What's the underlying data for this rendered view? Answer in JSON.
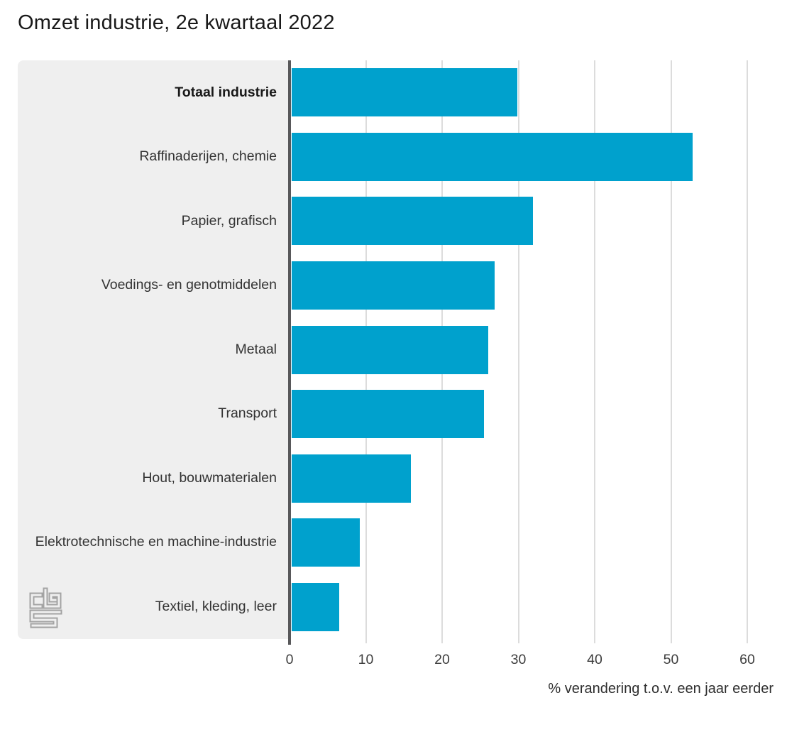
{
  "title": "Omzet industrie, 2e kwartaal 2022",
  "chart_data": {
    "type": "bar",
    "orientation": "horizontal",
    "title": "Omzet industrie, 2e kwartaal 2022",
    "categories": [
      "Totaal industrie",
      "Raffinaderijen, chemie",
      "Papier, grafisch",
      "Voedings- en genotmiddelen",
      "Metaal",
      "Transport",
      "Hout, bouwmaterialen",
      "Elektrotechnische en machine-industrie",
      "Textiel, kleding, leer"
    ],
    "values": [
      29.9,
      52.8,
      31.9,
      26.9,
      26.0,
      25.5,
      15.9,
      9.2,
      6.5
    ],
    "emphasized_category": "Totaal industrie",
    "xlabel": "% verandering t.o.v. een jaar eerder",
    "xticks": [
      0,
      10,
      20,
      30,
      40,
      50,
      60
    ],
    "xlim": [
      0,
      60
    ],
    "grid": true,
    "legend": "none",
    "colors": {
      "bar": "#00a1cd",
      "label_panel": "#efefef",
      "axis_line": "#58585a",
      "gridline": "#dcdcdc",
      "text": "#191919"
    }
  },
  "branding": {
    "logo_name": "cbs-logo"
  }
}
